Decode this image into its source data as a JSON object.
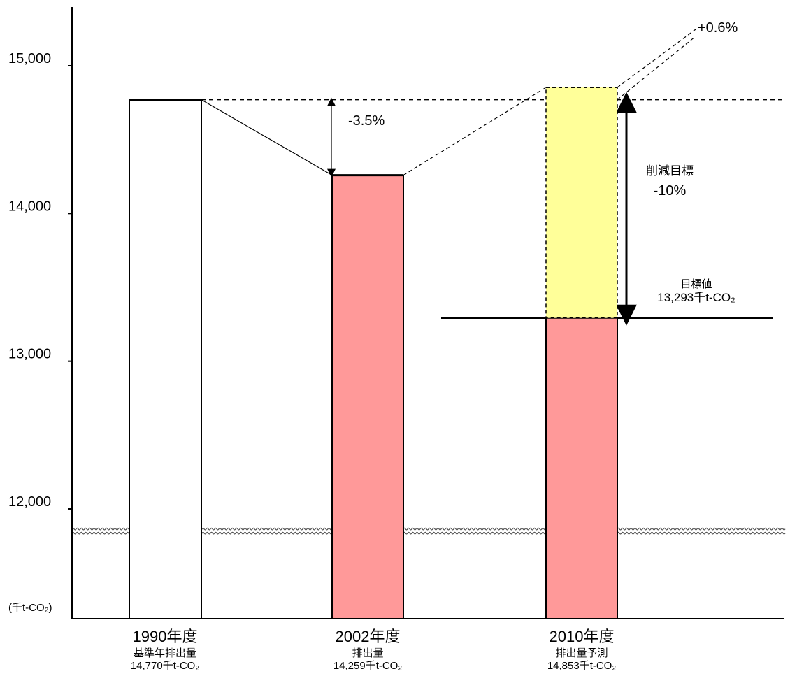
{
  "chart_data": {
    "type": "bar",
    "unit_label": "(千t-CO₂)",
    "yticks": [
      {
        "value": 12000,
        "label": "12,000"
      },
      {
        "value": 13000,
        "label": "13,000"
      },
      {
        "value": 14000,
        "label": "14,000"
      },
      {
        "value": 15000,
        "label": "15,000"
      }
    ],
    "ylim": [
      11650,
      15200
    ],
    "axis_break_value": 11850,
    "categories": [
      {
        "year": "1990年度",
        "desc": "基準年排出量",
        "value_label": "14,770千t-CO₂",
        "value": 14770,
        "color": "#ffffff"
      },
      {
        "year": "2002年度",
        "desc": "排出量",
        "value_label": "14,259千t-CO₂",
        "value": 14259,
        "color": "#ff9999"
      },
      {
        "year": "2010年度",
        "desc": "排出量予測",
        "value_label": "14,853千t-CO₂",
        "value": 14853,
        "base_value": 13293,
        "color": "#ff9999",
        "excess_color": "#ffff99"
      }
    ],
    "target": {
      "value": 13293,
      "label": "目標値",
      "value_label": "13,293千t-CO₂"
    },
    "annotations": {
      "change_2002": "-3.5%",
      "change_2010": "+0.6%",
      "reduction_title": "削減目標",
      "reduction_value": "-10%"
    }
  }
}
